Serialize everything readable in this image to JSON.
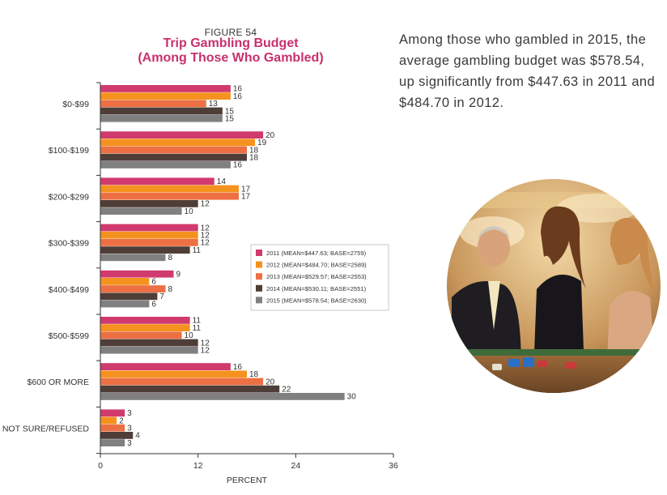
{
  "figure_label": "FIGURE 54",
  "title_line1": "Trip Gambling Budget",
  "title_line2": "(Among Those Who Gambled)",
  "description": "Among those who gambled in 2015, the average gambling budget was $578.54, up significantly from $447.63 in 2011 and $484.70 in 2012.",
  "colors": {
    "title": "#c8306e",
    "2011": "#d13a6e",
    "2012": "#f5921f",
    "2013": "#ec7043",
    "2014": "#4f3e38",
    "2015": "#808080"
  },
  "chart_data": {
    "type": "bar",
    "orientation": "horizontal",
    "categories": [
      "$0-$99",
      "$100-$199",
      "$200-$299",
      "$300-$399",
      "$400-$499",
      "$500-$599",
      "$600 OR MORE",
      "NOT SURE/REFUSED"
    ],
    "series": [
      {
        "name": "2011 (MEAN=$447.63; BASE=2759)",
        "color": "#d13a6e",
        "values": [
          16,
          20,
          14,
          12,
          9,
          11,
          16,
          3
        ]
      },
      {
        "name": "2012 (MEAN=$484.70; BASE=2589)",
        "color": "#f5921f",
        "values": [
          16,
          19,
          17,
          12,
          6,
          11,
          18,
          2
        ]
      },
      {
        "name": "2013 (MEAN=$529.57; BASE=2553)",
        "color": "#ec7043",
        "values": [
          13,
          18,
          17,
          12,
          8,
          10,
          20,
          3
        ]
      },
      {
        "name": "2014 (MEAN=$530.11; BASE=2551)",
        "color": "#4f3e38",
        "values": [
          15,
          18,
          12,
          11,
          7,
          12,
          22,
          4
        ]
      },
      {
        "name": "2015 (MEAN=$578.54; BASE=2630)",
        "color": "#808080",
        "values": [
          15,
          16,
          10,
          8,
          6,
          12,
          30,
          3
        ]
      }
    ],
    "xlabel": "PERCENT",
    "xlim": [
      0,
      36
    ],
    "xticks": [
      0,
      12,
      24,
      36
    ],
    "grid": false,
    "legend_position": "center-right"
  }
}
